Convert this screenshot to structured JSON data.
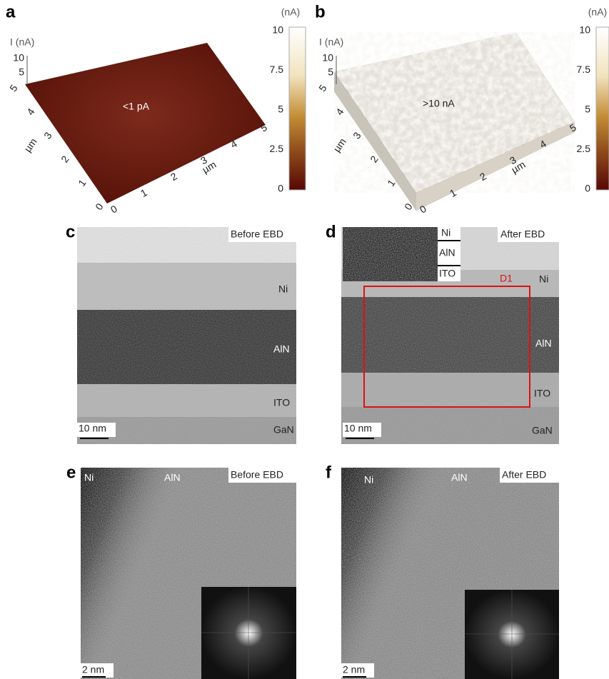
{
  "panel_a": {
    "label": "a",
    "z_axis_label": "I (nA)",
    "z_ticks": [
      "10",
      "5"
    ],
    "y_ticks": [
      "5",
      "4",
      "3",
      "2",
      "1",
      "0"
    ],
    "y_unit": "µm",
    "x_ticks": [
      "0",
      "1",
      "2",
      "3",
      "4",
      "5"
    ],
    "x_unit": "µm",
    "annotation": "<1 pA",
    "colorbar_unit": "(nA)",
    "colorbar_ticks": [
      "10",
      "7.5",
      "5",
      "2.5",
      "0"
    ]
  },
  "panel_b": {
    "label": "b",
    "z_axis_label": "I (nA)",
    "z_ticks": [
      "10",
      "5"
    ],
    "y_ticks": [
      "5",
      "4",
      "3",
      "2",
      "1",
      "0"
    ],
    "y_unit": "µm",
    "x_ticks": [
      "0",
      "1",
      "2",
      "3",
      "4",
      "5"
    ],
    "x_unit": "µm",
    "annotation": ">10 nA",
    "colorbar_unit": "(nA)",
    "colorbar_ticks": [
      "10",
      "7.5",
      "5",
      "2.5",
      "0"
    ]
  },
  "panel_c": {
    "label": "c",
    "condition": "Before EBD",
    "layers": [
      "Ni",
      "AlN",
      "ITO",
      "GaN"
    ],
    "scale_bar": "10 nm"
  },
  "panel_d": {
    "label": "d",
    "condition": "After EBD",
    "inset_layers": [
      "Ni",
      "AlN",
      "ITO"
    ],
    "region": "D1",
    "layers": [
      "Ni",
      "AlN",
      "ITO",
      "GaN"
    ],
    "scale_bar": "10 nm"
  },
  "panel_e": {
    "label": "e",
    "condition": "Before EBD",
    "regions": [
      "Ni",
      "AlN"
    ],
    "scale_bar": "2 nm"
  },
  "panel_f": {
    "label": "f",
    "condition": "After EBD",
    "regions": [
      "Ni",
      "AlN"
    ],
    "scale_bar": "2 nm"
  }
}
